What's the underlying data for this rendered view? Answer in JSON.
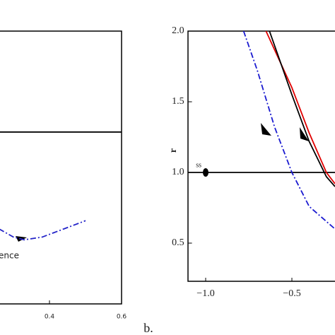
{
  "chart_data": [
    {
      "type": "line",
      "xlim": [
        0.2,
        0.6
      ],
      "ylim": [
        0,
        2
      ],
      "xticks": [
        0.4,
        0.6
      ],
      "annotations": [
        "ence"
      ],
      "series": [
        {
          "color": "#000000",
          "style": "solid",
          "x": [
            0.2,
            0.6
          ],
          "values": [
            1.26,
            1.26
          ]
        },
        {
          "color": "#2323c8",
          "style": "dashdot",
          "x": [
            0.26,
            0.3,
            0.33,
            0.38,
            0.44,
            0.5
          ],
          "values": [
            0.55,
            0.49,
            0.47,
            0.49,
            0.55,
            0.61
          ]
        }
      ]
    },
    {
      "type": "line",
      "label": "b.",
      "ylabel": "r",
      "xlim": [
        -1.1,
        -0.25
      ],
      "ylim": [
        0.23,
        2.0
      ],
      "xticks": [
        {
          "value": -1.0,
          "label": "−1.0"
        },
        {
          "value": -0.5,
          "label": "−0.5"
        }
      ],
      "yticks": [
        0.5,
        {
          "value": 1.0,
          "label": "1.0"
        },
        1.5,
        {
          "value": 2.0,
          "label": "2.0"
        }
      ],
      "points": [
        {
          "label": "ss",
          "x": -1.0,
          "y": 1.0
        }
      ],
      "series": [
        {
          "color": "#000000",
          "style": "solid",
          "x": [
            -1.1,
            -0.25
          ],
          "values": [
            1.0,
            1.0
          ]
        },
        {
          "color": "#e00000",
          "style": "solid",
          "x": [
            -0.65,
            -0.5,
            -0.4,
            -0.3,
            -0.25
          ],
          "values": [
            2.0,
            1.6,
            1.28,
            1.0,
            0.92
          ]
        },
        {
          "color": "#000000",
          "style": "solid",
          "x": [
            -0.63,
            -0.5,
            -0.4,
            -0.3,
            -0.25
          ],
          "values": [
            2.0,
            1.55,
            1.22,
            0.97,
            0.9
          ]
        },
        {
          "color": "#1a1ad0",
          "style": "dashdot",
          "x": [
            -0.78,
            -0.7,
            -0.6,
            -0.5,
            -0.4,
            -0.25
          ],
          "values": [
            2.0,
            1.72,
            1.32,
            1.0,
            0.76,
            0.6
          ]
        }
      ]
    }
  ]
}
